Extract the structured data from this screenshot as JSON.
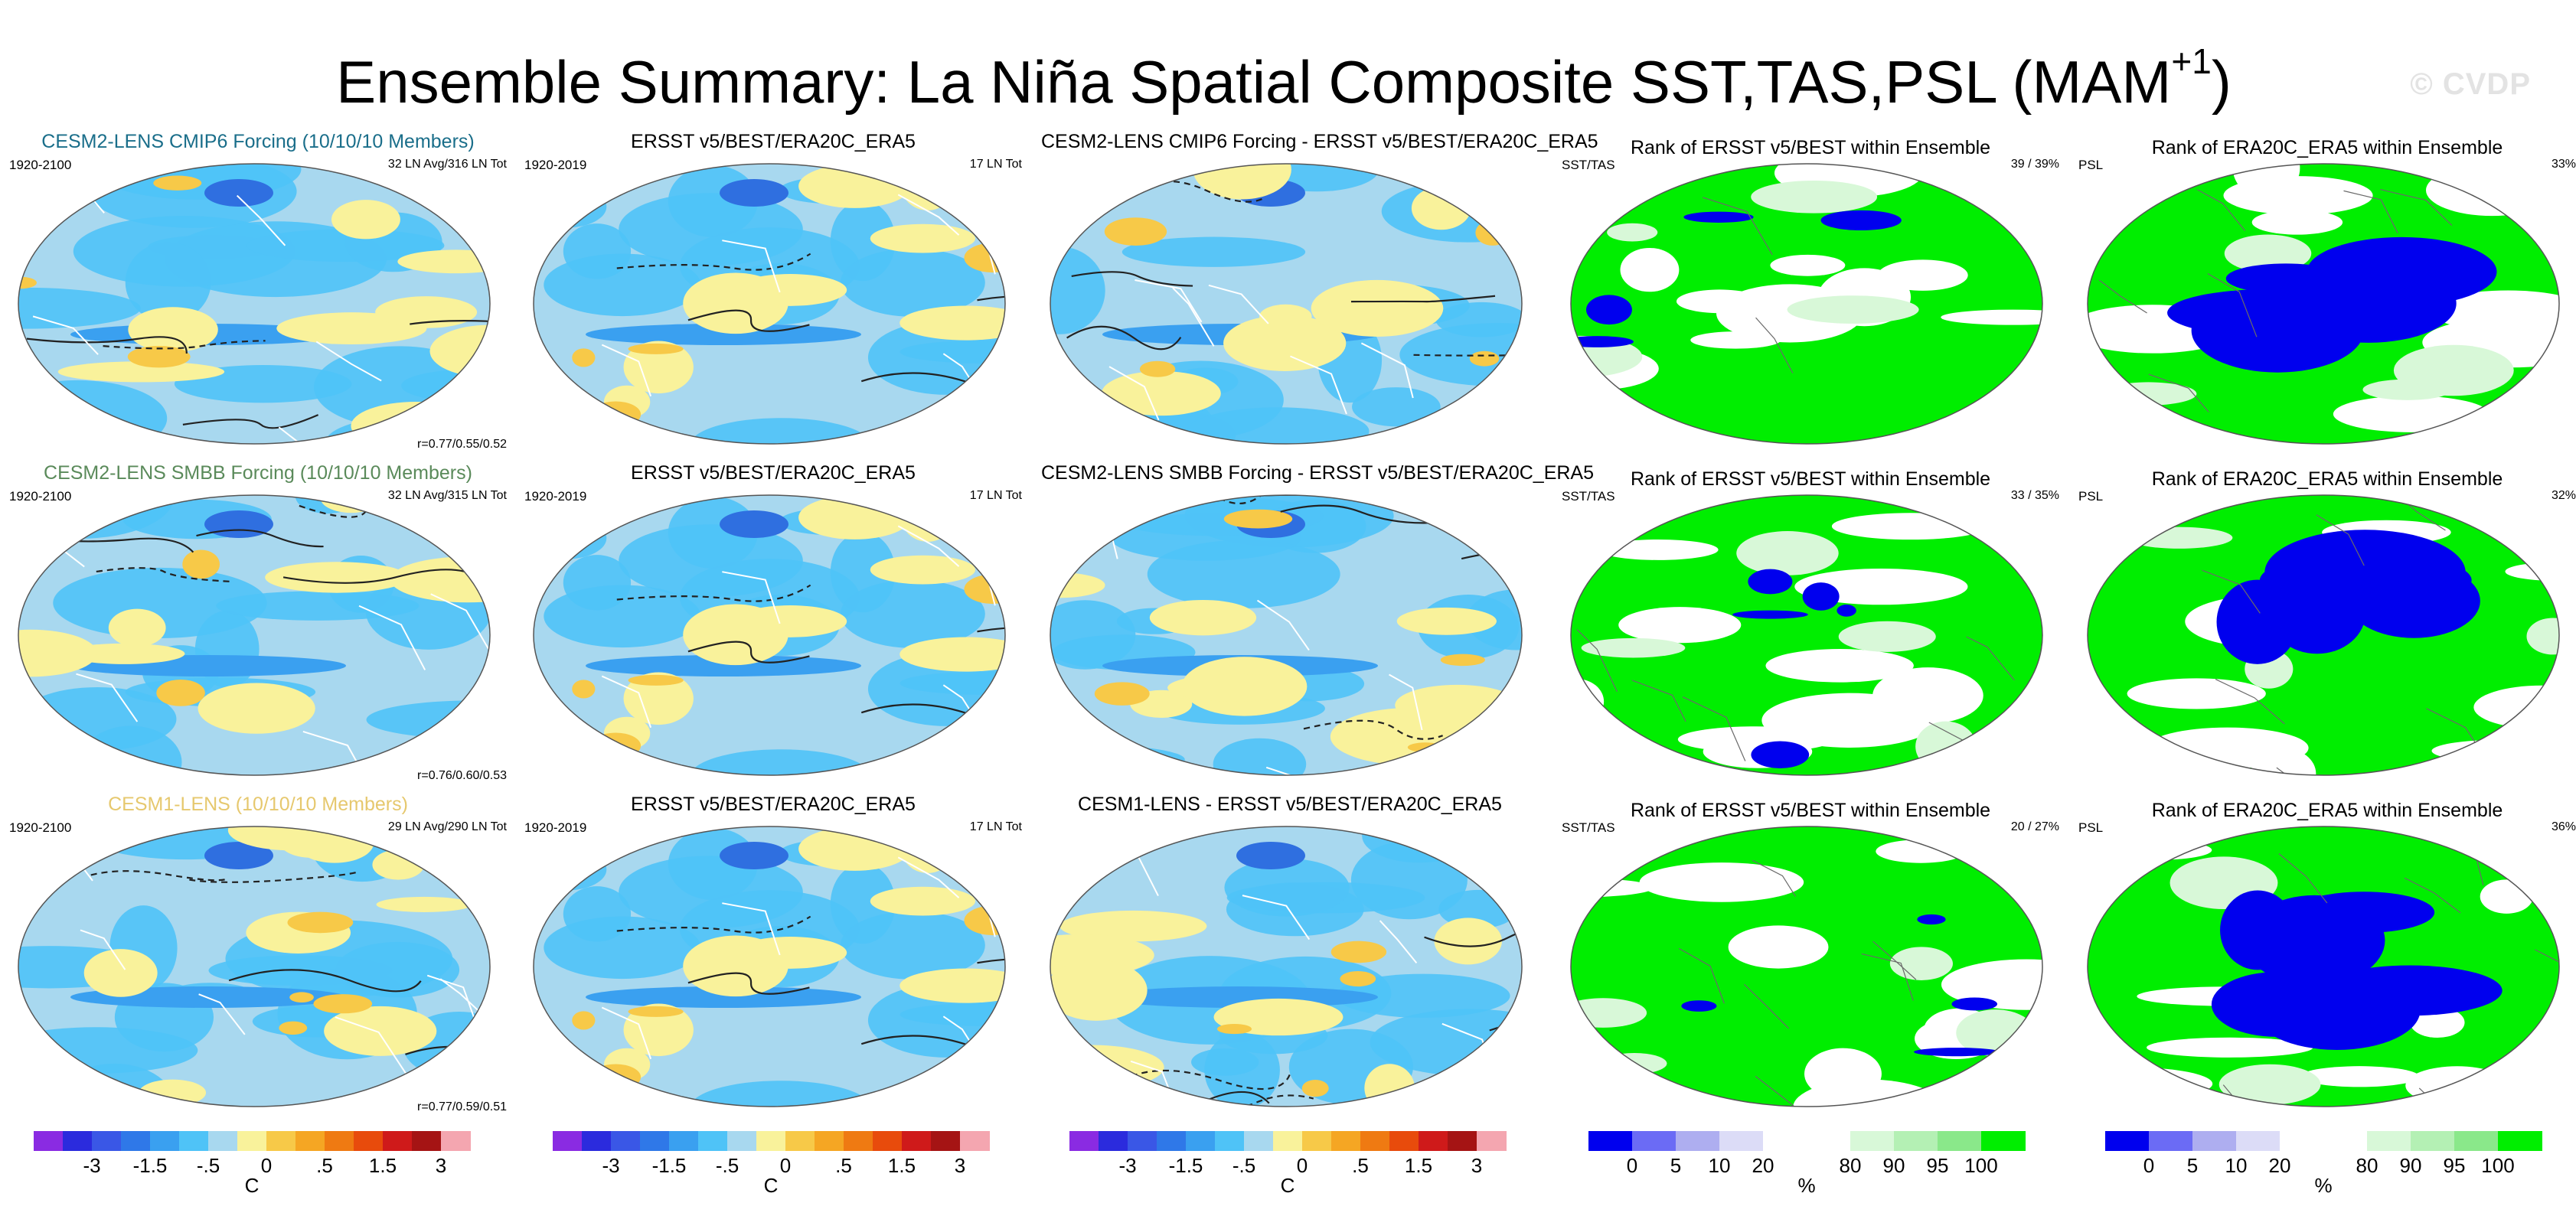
{
  "title": {
    "main": "Ensemble Summary: La Niña Spatial Composite SST,TAS,PSL (MAM",
    "sup": "+1",
    "close": ")"
  },
  "watermark": "© CVDP",
  "rows": [
    {
      "ens": {
        "title": "CESM2-LENS CMIP6 Forcing (10/10/10 Members)",
        "title_color": "#1a6e8a",
        "period": "1920-2100",
        "members": "32 LN Avg/316 LN Tot",
        "corr": "r=0.77/0.55/0.52"
      },
      "obs": {
        "title": "ERSST v5/BEST/ERA20C_ERA5",
        "period": "1920-2019",
        "members": "17 LN Tot"
      },
      "diff": {
        "title": "CESM2-LENS CMIP6 Forcing - ERSST v5/BEST/ERA20C_ERA5"
      },
      "rank1": {
        "title": "Rank of ERSST v5/BEST within Ensemble",
        "var": "SST/TAS",
        "pct": "39 /  39%"
      },
      "rank2": {
        "title": "Rank of ERA20C_ERA5 within Ensemble",
        "var": "PSL",
        "pct": "33%"
      }
    },
    {
      "ens": {
        "title": "CESM2-LENS SMBB Forcing (10/10/10 Members)",
        "title_color": "#5a8a5a",
        "period": "1920-2100",
        "members": "32 LN Avg/315 LN Tot",
        "corr": "r=0.76/0.60/0.53"
      },
      "obs": {
        "title": "ERSST v5/BEST/ERA20C_ERA5",
        "period": "1920-2019",
        "members": "17 LN Tot"
      },
      "diff": {
        "title": "CESM2-LENS SMBB Forcing - ERSST v5/BEST/ERA20C_ERA5"
      },
      "rank1": {
        "title": "Rank of ERSST v5/BEST within Ensemble",
        "var": "SST/TAS",
        "pct": "33 /  35%"
      },
      "rank2": {
        "title": "Rank of ERA20C_ERA5 within Ensemble",
        "var": "PSL",
        "pct": "32%"
      }
    },
    {
      "ens": {
        "title": "CESM1-LENS (10/10/10 Members)",
        "title_color": "#e6c86e",
        "period": "1920-2100",
        "members": "29 LN Avg/290 LN Tot",
        "corr": "r=0.77/0.59/0.51"
      },
      "obs": {
        "title": "ERSST v5/BEST/ERA20C_ERA5",
        "period": "1920-2019",
        "members": "17 LN Tot"
      },
      "diff": {
        "title": "CESM1-LENS - ERSST v5/BEST/ERA20C_ERA5"
      },
      "rank1": {
        "title": "Rank of ERSST v5/BEST within Ensemble",
        "var": "SST/TAS",
        "pct": "20 /  27%"
      },
      "rank2": {
        "title": "Rank of ERA20C_ERA5 within Ensemble",
        "var": "PSL",
        "pct": "36%"
      }
    }
  ],
  "colorbars": {
    "temp": {
      "colors": [
        "#8a2be2",
        "#2b2bdd",
        "#3a57e6",
        "#2f78e8",
        "#3aa0f0",
        "#4fc3f7",
        "#a8d8ef",
        "#f9f29b",
        "#f7c948",
        "#f5a623",
        "#ef7a12",
        "#e84b0c",
        "#cf1a1a",
        "#a51414",
        "#f4a6b0"
      ],
      "ticks": [
        "-3",
        "-1.5",
        "-.5",
        "0",
        ".5",
        "1.5",
        "3"
      ],
      "unit": "C"
    },
    "rank": {
      "colors": [
        "#0000ee",
        "#6b6bf5",
        "#aeaef0",
        "#dcdcf7",
        "#ffffff",
        "#ffffff",
        "#d8f8d8",
        "#b4f0b4",
        "#8ae88a",
        "#00ee00"
      ],
      "ticks": [
        "0",
        "5",
        "10",
        "20",
        "80",
        "90",
        "95",
        "100"
      ],
      "unit": "%"
    }
  },
  "map_colors": {
    "ocean_base": "#a8d8ef",
    "blue": "#4fc3f7",
    "deep_blue": "#3aa0f0",
    "navy": "#2f6fe0",
    "yellow": "#f9f29b",
    "orange": "#f7c948",
    "rank_green": "#00ee00",
    "rank_blue": "#0000ee",
    "rank_pale_green": "#d8f8d8"
  }
}
